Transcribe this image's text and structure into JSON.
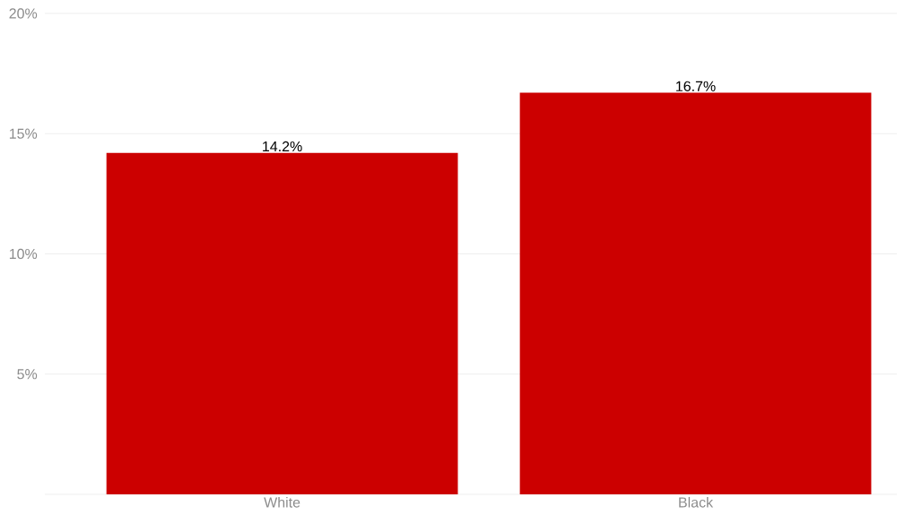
{
  "chart_data": {
    "type": "bar",
    "categories": [
      "White",
      "Black"
    ],
    "values": [
      14.2,
      16.7
    ],
    "value_labels": [
      "14.2%",
      "16.7%"
    ],
    "color": "#cc0000",
    "ylim": [
      0,
      20
    ],
    "yticks": [
      {
        "value": 0,
        "label": null
      },
      {
        "value": 5,
        "label": "5%"
      },
      {
        "value": 10,
        "label": "10%"
      },
      {
        "value": 15,
        "label": "15%"
      },
      {
        "value": 20,
        "label": "20%"
      }
    ],
    "grid": "y"
  }
}
